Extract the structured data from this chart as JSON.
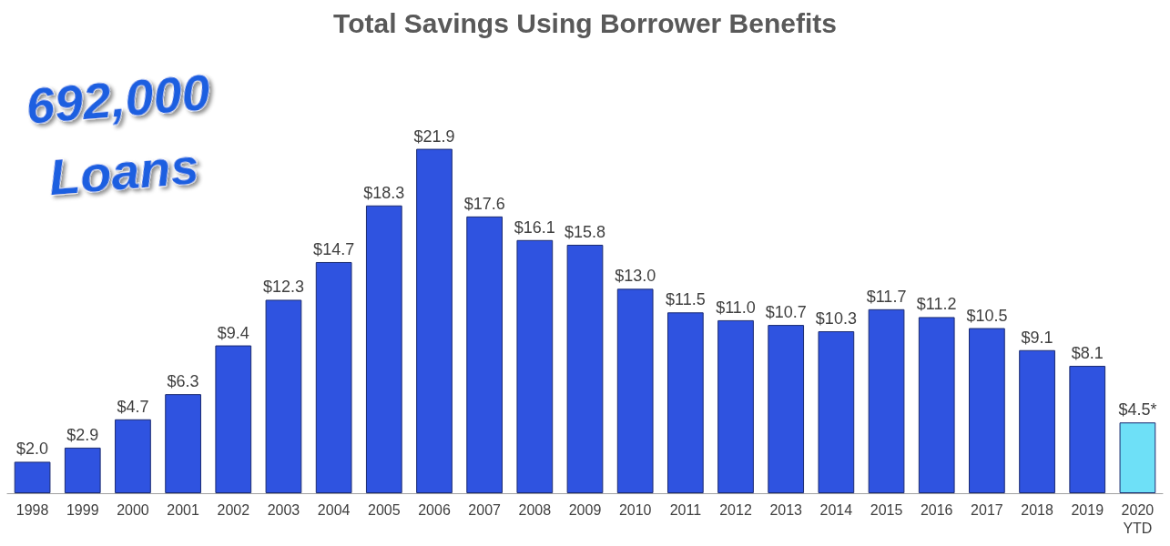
{
  "chart_data": {
    "type": "bar",
    "title": "Total Savings Using Borrower Benefits",
    "categories": [
      "1998",
      "1999",
      "2000",
      "2001",
      "2002",
      "2003",
      "2004",
      "2005",
      "2006",
      "2007",
      "2008",
      "2009",
      "2010",
      "2011",
      "2012",
      "2013",
      "2014",
      "2015",
      "2016",
      "2017",
      "2018",
      "2019",
      "2020\nYTD"
    ],
    "values": [
      2.0,
      2.9,
      4.7,
      6.3,
      9.4,
      12.3,
      14.7,
      18.3,
      21.9,
      17.6,
      16.1,
      15.8,
      13.0,
      11.5,
      11.0,
      10.7,
      10.3,
      11.7,
      11.2,
      10.5,
      9.1,
      8.1,
      4.5
    ],
    "colors": [
      "#2f53e0",
      "#2f53e0",
      "#2f53e0",
      "#2f53e0",
      "#2f53e0",
      "#2f53e0",
      "#2f53e0",
      "#2f53e0",
      "#2f53e0",
      "#2f53e0",
      "#2f53e0",
      "#2f53e0",
      "#2f53e0",
      "#2f53e0",
      "#2f53e0",
      "#2f53e0",
      "#2f53e0",
      "#2f53e0",
      "#2f53e0",
      "#2f53e0",
      "#2f53e0",
      "#2f53e0",
      "#6ee0f7"
    ],
    "value_labels": [
      "$2.0",
      "$2.9",
      "$4.7",
      "$6.3",
      "$9.4",
      "$12.3",
      "$14.7",
      "$18.3",
      "$21.9",
      "$17.6",
      "$16.1",
      "$15.8",
      "$13.0",
      "$11.5",
      "$11.0",
      "$10.7",
      "$10.3",
      "$11.7",
      "$11.2",
      "$10.5",
      "$9.1",
      "$8.1",
      "$4.5*"
    ],
    "annotations": [
      "692,000\nLoans"
    ],
    "grid": false
  }
}
